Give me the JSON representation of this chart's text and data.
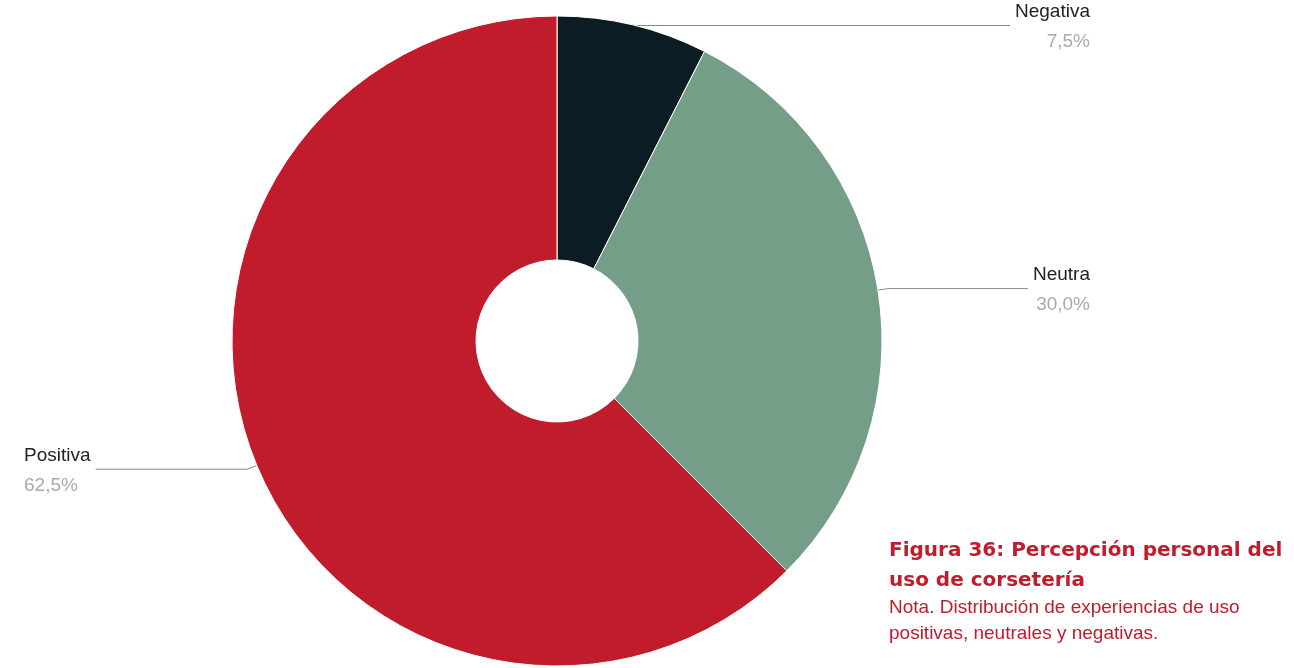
{
  "chart_data": {
    "type": "donut",
    "title": "Figura 36: Percepción personal del uso de corsetería",
    "annotations": [
      "Nota. Distribución de experiencias de uso positivas, neutrales y negativas."
    ],
    "categories": [
      "Negativa",
      "Neutra",
      "Positiva"
    ],
    "values": [
      7.5,
      30.0,
      62.5
    ],
    "colors": [
      "#0b1c24",
      "#749e88",
      "#c01c2c"
    ],
    "value_labels": [
      "7,5%",
      "30,0%",
      "62,5%"
    ],
    "legend": false
  }
}
